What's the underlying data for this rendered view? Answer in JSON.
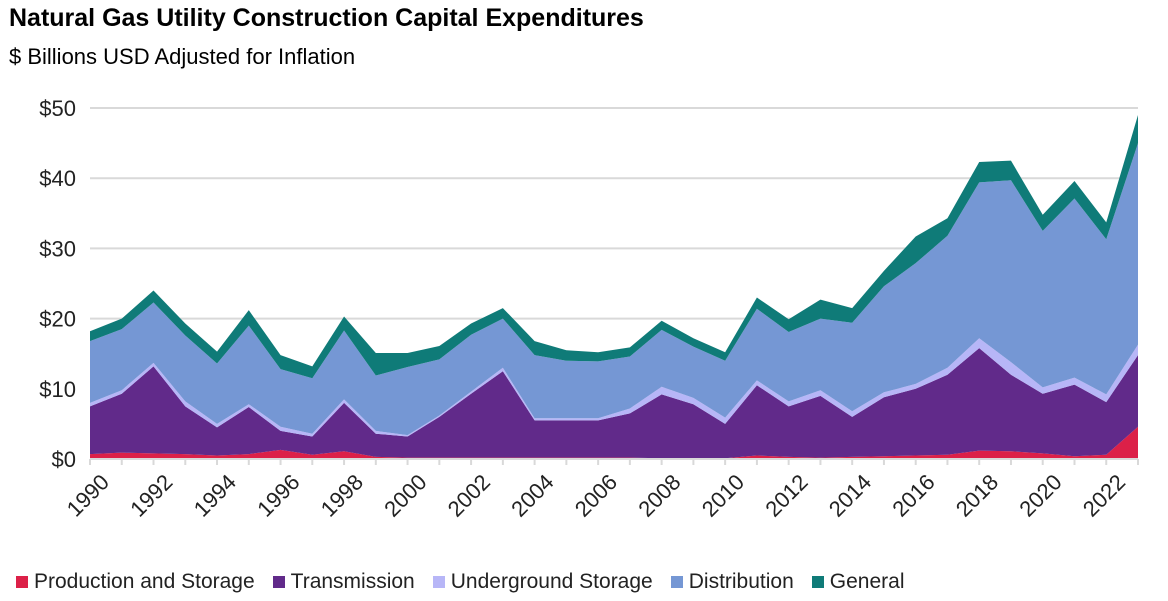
{
  "chart_data": {
    "type": "area",
    "stacked": true,
    "title": "Natural Gas Utility Construction Capital Expenditures",
    "subtitle": "$ Billions USD Adjusted for Inflation",
    "xlabel": "",
    "ylabel": "",
    "ylim": [
      0,
      50
    ],
    "yticks": [
      "$0",
      "$10",
      "$20",
      "$30",
      "$40",
      "$50"
    ],
    "grid": true,
    "legend_position": "bottom",
    "x": [
      1990,
      1991,
      1992,
      1993,
      1994,
      1995,
      1996,
      1997,
      1998,
      1999,
      2000,
      2001,
      2002,
      2003,
      2004,
      2005,
      2006,
      2007,
      2008,
      2009,
      2010,
      2011,
      2012,
      2013,
      2014,
      2015,
      2016,
      2017,
      2018,
      2019,
      2020,
      2021,
      2022,
      2023
    ],
    "xtick_labels": [
      "1990",
      "1992",
      "1994",
      "1996",
      "1998",
      "2000",
      "2002",
      "2004",
      "2006",
      "2008",
      "2010",
      "2012",
      "2014",
      "2016",
      "2018",
      "2020",
      "2022"
    ],
    "series": [
      {
        "name": "Production and Storage",
        "color": "#dc2048",
        "values": [
          0.7,
          0.9,
          0.8,
          0.7,
          0.5,
          0.7,
          1.3,
          0.6,
          1.1,
          0.3,
          0.2,
          0.2,
          0.2,
          0.2,
          0.2,
          0.2,
          0.2,
          0.2,
          0.1,
          0.1,
          0.1,
          0.5,
          0.3,
          0.2,
          0.3,
          0.4,
          0.5,
          0.6,
          1.2,
          1.1,
          0.8,
          0.4,
          0.6,
          4.6
        ]
      },
      {
        "name": "Transmission",
        "color": "#612a8a",
        "values": [
          6.8,
          8.4,
          12.4,
          6.8,
          4.0,
          6.7,
          2.7,
          2.6,
          6.9,
          3.3,
          3.0,
          5.8,
          9.1,
          12.3,
          5.3,
          5.3,
          5.3,
          6.3,
          9.1,
          7.7,
          4.9,
          10.0,
          7.2,
          8.8,
          5.7,
          8.4,
          9.5,
          11.4,
          14.6,
          10.9,
          8.5,
          10.2,
          7.5,
          10.2
        ]
      },
      {
        "name": "Underground Storage",
        "color": "#b7b6f7",
        "values": [
          0.5,
          0.5,
          0.5,
          0.7,
          0.5,
          0.4,
          0.6,
          0.4,
          0.5,
          0.4,
          0.2,
          0.2,
          0.3,
          0.5,
          0.3,
          0.3,
          0.3,
          0.7,
          1.1,
          0.9,
          0.9,
          0.7,
          0.7,
          0.8,
          0.8,
          0.7,
          0.7,
          1.0,
          1.4,
          1.8,
          0.9,
          1.0,
          1.1,
          1.5
        ]
      },
      {
        "name": "Distribution",
        "color": "#7597d4",
        "values": [
          8.8,
          8.7,
          8.6,
          9.4,
          8.6,
          11.2,
          8.2,
          7.9,
          9.8,
          7.9,
          9.7,
          8.0,
          8.1,
          7.0,
          9.0,
          8.2,
          8.1,
          7.4,
          8.1,
          7.3,
          8.1,
          10.2,
          9.9,
          10.2,
          12.6,
          15.1,
          17.2,
          18.8,
          22.2,
          25.9,
          22.3,
          25.5,
          22.1,
          28.7
        ]
      },
      {
        "name": "General",
        "color": "#0f7b78",
        "values": [
          1.4,
          1.5,
          1.7,
          1.7,
          1.7,
          2.2,
          2.0,
          1.7,
          2.0,
          3.2,
          2.0,
          1.9,
          1.6,
          1.5,
          2.0,
          1.5,
          1.3,
          1.3,
          1.3,
          1.2,
          1.2,
          1.6,
          1.8,
          2.7,
          2.1,
          2.2,
          3.8,
          2.5,
          2.9,
          2.8,
          2.3,
          2.5,
          2.4,
          4.0
        ]
      }
    ]
  }
}
